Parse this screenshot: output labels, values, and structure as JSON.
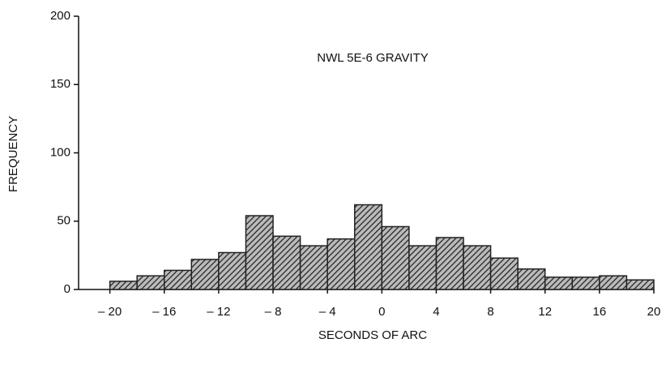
{
  "chart_data": {
    "type": "histogram",
    "title": "NWL 5E-6 GRAVITY",
    "xlabel": "SECONDS OF ARC",
    "ylabel": "FREQUENCY",
    "bins": [
      -20,
      -18,
      -16,
      -14,
      -12,
      -10,
      -8,
      -6,
      -4,
      -2,
      0,
      2,
      4,
      6,
      8,
      10,
      12,
      14,
      16,
      18,
      20
    ],
    "values": [
      6,
      10,
      14,
      22,
      27,
      54,
      39,
      32,
      37,
      62,
      46,
      32,
      38,
      32,
      23,
      15,
      9,
      9,
      10,
      7
    ],
    "color": "#222222",
    "xlim": [
      -22.3,
      20
    ],
    "ylim": [
      0,
      200
    ],
    "xticks": [
      {
        "value": -20,
        "label": "– 20"
      },
      {
        "value": -16,
        "label": "– 16"
      },
      {
        "value": -12,
        "label": "– 12"
      },
      {
        "value": -8,
        "label": "– 8"
      },
      {
        "value": -4,
        "label": "– 4"
      },
      0,
      4,
      8,
      12,
      16,
      20
    ],
    "yticks": [
      0,
      50,
      100,
      150,
      200
    ]
  }
}
